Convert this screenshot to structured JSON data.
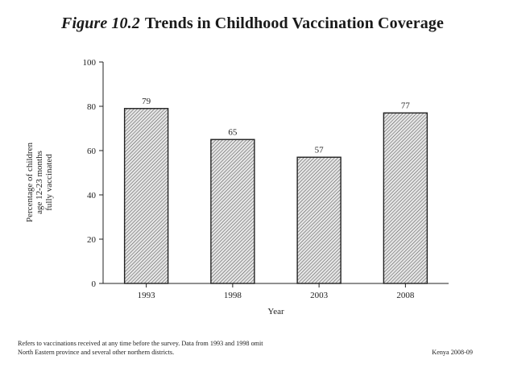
{
  "figure": {
    "label": "Figure 10.2",
    "title": "Trends in Childhood Vaccination Coverage"
  },
  "chart_data": {
    "type": "bar",
    "categories": [
      "1993",
      "1998",
      "2003",
      "2008"
    ],
    "values": [
      79,
      65,
      57,
      77
    ],
    "data_labels": [
      "79",
      "65",
      "57",
      "77"
    ],
    "xlabel": "Year",
    "ylabel_lines": [
      "Percentage of children",
      "age 12-23 months",
      "fully vaccinated"
    ],
    "ylim": [
      0,
      100
    ],
    "yticks": [
      "0",
      "20",
      "40",
      "60",
      "80",
      "100"
    ],
    "grid": false,
    "bar_fill": "hatched",
    "colors": {
      "bar_stroke": "#222222",
      "hatch": "#555555"
    }
  },
  "footnote": {
    "line1": "Refers to vaccinations received at any time before the survey. Data from 1993 and 1998 omit",
    "line2": "North Eastern province and several other northern districts."
  },
  "source": "Kenya 2008-09"
}
